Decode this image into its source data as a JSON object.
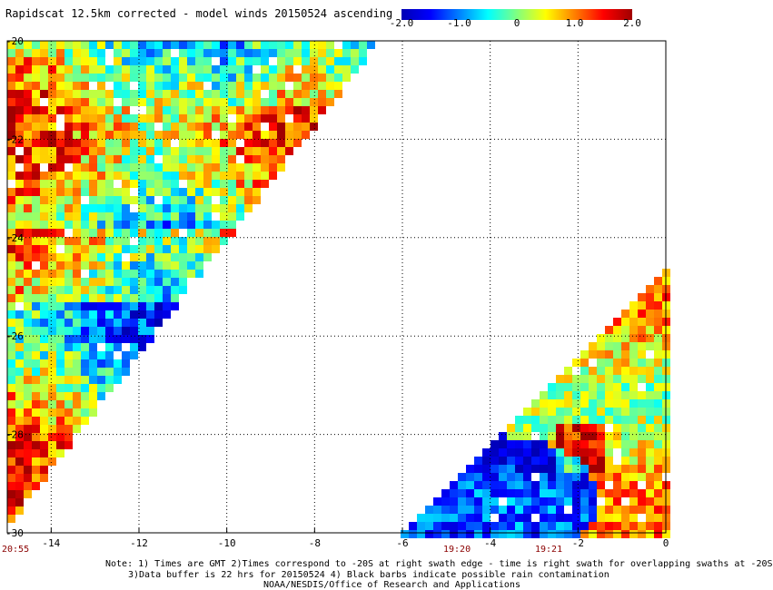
{
  "title": "Rapidscat 12.5km corrected - model winds 20150524 ascending",
  "colorbar": {
    "colors": [
      "#0000b4",
      "#0000ff",
      "#0080ff",
      "#00ffff",
      "#80ff80",
      "#ffff00",
      "#ff8000",
      "#ff0000",
      "#a00000"
    ],
    "ticks": [
      "-2.0",
      "-1.0",
      "0",
      "1.0",
      "2.0"
    ],
    "min": -2.0,
    "max": 2.0
  },
  "map": {
    "lon_ticks": [
      "-14",
      "-12",
      "-10",
      "-8",
      "-6",
      "-4",
      "-2",
      "0"
    ],
    "lat_ticks": [
      "-20",
      "-22",
      "-24",
      "-26",
      "-28",
      "-30"
    ],
    "lon_range": [
      -15,
      0
    ],
    "lat_range": [
      -30,
      -20
    ],
    "grid": "dotted",
    "time_labels": [
      "20:55",
      "19:20",
      "19:21"
    ]
  },
  "notes": {
    "line1": "Note: 1) Times are GMT 2)Times correspond to -20S at right swath edge - time is right swath for overlapping swaths at -20S",
    "line2": "3)Data buffer is 22 hrs for 20150524 4) Black barbs indicate possible rain contamination",
    "line3": "NOAA/NESDIS/Office of Research and Applications"
  }
}
